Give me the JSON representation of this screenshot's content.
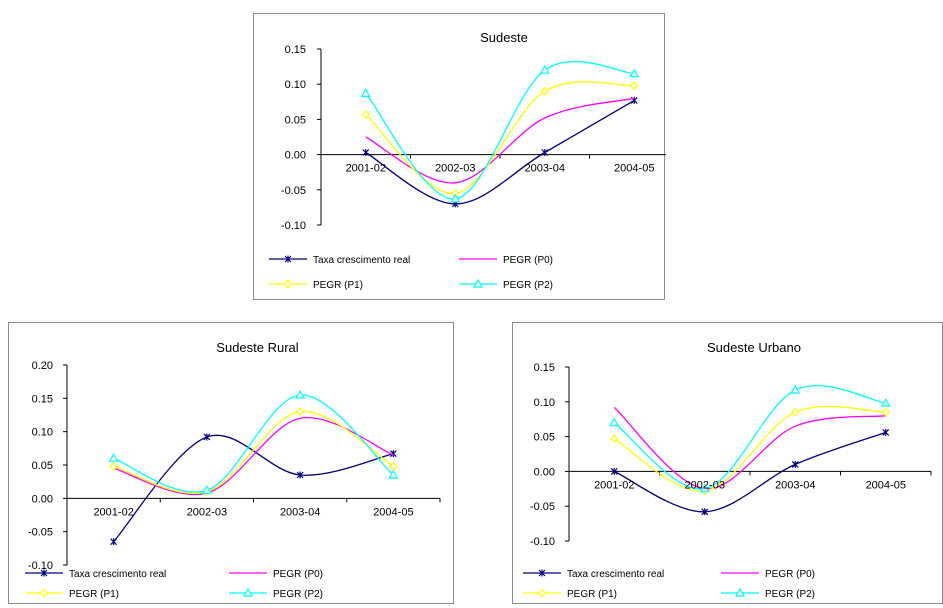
{
  "chart_data": [
    {
      "type": "line",
      "title": "Sudeste",
      "categories": [
        "2001-02",
        "2002-03",
        "2003-04",
        "2004-05"
      ],
      "yticks": [
        "0.15",
        "0.10",
        "0.05",
        "0.00",
        "-0.05",
        "-0.10"
      ],
      "ylim": [
        -0.1,
        0.15
      ],
      "series": [
        {
          "name": "Taxa crescimento real",
          "color": "#000080",
          "marker": "star",
          "values": [
            0.003,
            -0.07,
            0.003,
            0.077
          ]
        },
        {
          "name": "PEGR (P0)",
          "color": "#ff00ff",
          "marker": "none",
          "values": [
            0.025,
            -0.04,
            0.052,
            0.08
          ]
        },
        {
          "name": "PEGR (P1)",
          "color": "#ffff00",
          "marker": "diamond",
          "values": [
            0.057,
            -0.055,
            0.09,
            0.098
          ]
        },
        {
          "name": "PEGR (P2)",
          "color": "#00ffff",
          "marker": "triangle",
          "values": [
            0.087,
            -0.063,
            0.12,
            0.115
          ]
        }
      ]
    },
    {
      "type": "line",
      "title": "Sudeste Rural",
      "categories": [
        "2001-02",
        "2002-03",
        "2003-04",
        "2004-05"
      ],
      "yticks": [
        "0.20",
        "0.15",
        "0.10",
        "0.05",
        "0.00",
        "-0.05",
        "-0.10"
      ],
      "ylim": [
        -0.1,
        0.2
      ],
      "series": [
        {
          "name": "Taxa crescimento real",
          "color": "#000080",
          "marker": "star",
          "values": [
            -0.065,
            0.092,
            0.035,
            0.067
          ]
        },
        {
          "name": "PEGR (P0)",
          "color": "#ff00ff",
          "marker": "none",
          "values": [
            0.045,
            0.008,
            0.12,
            0.065
          ]
        },
        {
          "name": "PEGR (P1)",
          "color": "#ffff00",
          "marker": "diamond",
          "values": [
            0.048,
            0.01,
            0.13,
            0.048
          ]
        },
        {
          "name": "PEGR (P2)",
          "color": "#00ffff",
          "marker": "triangle",
          "values": [
            0.06,
            0.012,
            0.155,
            0.035
          ]
        }
      ]
    },
    {
      "type": "line",
      "title": "Sudeste Urbano",
      "categories": [
        "2001-02",
        "2002-03",
        "2003-04",
        "2004-05"
      ],
      "yticks": [
        "0.15",
        "0.10",
        "0.05",
        "0.00",
        "-0.05",
        "-0.10"
      ],
      "ylim": [
        -0.1,
        0.15
      ],
      "series": [
        {
          "name": "Taxa crescimento real",
          "color": "#000080",
          "marker": "star",
          "values": [
            0.0,
            -0.058,
            0.01,
            0.056
          ]
        },
        {
          "name": "PEGR (P0)",
          "color": "#ff00ff",
          "marker": "none",
          "values": [
            0.092,
            -0.025,
            0.065,
            0.08
          ]
        },
        {
          "name": "PEGR (P1)",
          "color": "#ffff00",
          "marker": "diamond",
          "values": [
            0.047,
            -0.028,
            0.085,
            0.085
          ]
        },
        {
          "name": "PEGR (P2)",
          "color": "#00ffff",
          "marker": "triangle",
          "values": [
            0.07,
            -0.025,
            0.117,
            0.098
          ]
        }
      ]
    }
  ]
}
